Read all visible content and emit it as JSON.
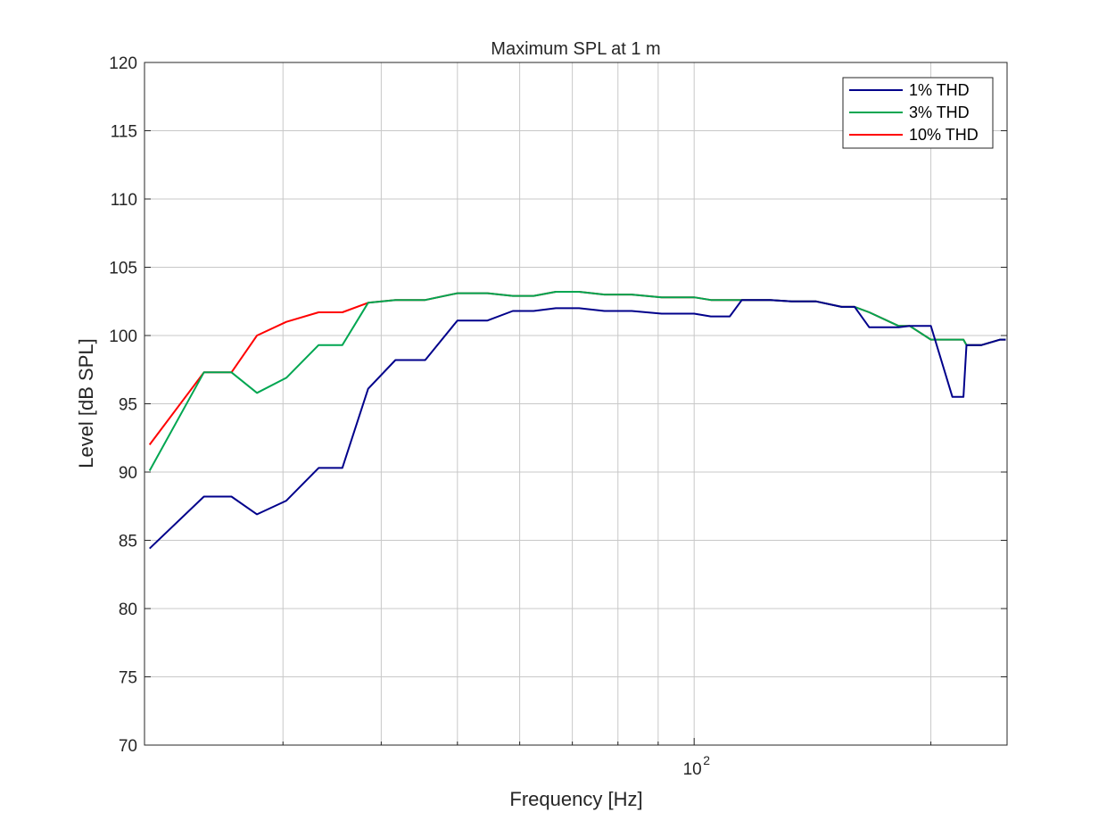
{
  "chart_data": {
    "type": "line",
    "title": "Maximum SPL at 1 m",
    "xlabel": "Frequency [Hz]",
    "ylabel": "Level [dB SPL]",
    "xscale": "log",
    "xlim": [
      20,
      250
    ],
    "ylim": [
      70,
      120
    ],
    "yticks": [
      70,
      75,
      80,
      85,
      90,
      95,
      100,
      105,
      110,
      115,
      120
    ],
    "xtick_major": {
      "value": 100,
      "base": "10",
      "exp": "2"
    },
    "xgrid_minor": [
      30,
      40,
      50,
      60,
      70,
      80,
      90,
      200
    ],
    "grid": true,
    "legend_position": "top-right",
    "series": [
      {
        "name": "1% THD",
        "color": "#00008b",
        "x": [
          20.3,
          23.8,
          25.8,
          27.8,
          30.3,
          33.3,
          35.7,
          38.5,
          41.7,
          45.5,
          50,
          54.6,
          58.8,
          62.5,
          66.7,
          71.4,
          76.9,
          83.3,
          90.9,
          100,
          105,
          111,
          115,
          118,
          125,
          133,
          143,
          154,
          160,
          167,
          182,
          188,
          200,
          213,
          220,
          222,
          227,
          232,
          245,
          249
        ],
        "y": [
          84.4,
          88.2,
          88.2,
          86.9,
          87.9,
          90.3,
          90.3,
          96.1,
          98.2,
          98.2,
          101.1,
          101.1,
          101.8,
          101.8,
          102.0,
          102.0,
          101.8,
          101.8,
          101.6,
          101.6,
          101.4,
          101.4,
          102.6,
          102.6,
          102.6,
          102.5,
          102.5,
          102.1,
          102.1,
          100.6,
          100.6,
          100.7,
          100.7,
          95.5,
          95.5,
          99.3,
          99.3,
          99.3,
          99.7,
          99.7
        ]
      },
      {
        "name": "3% THD",
        "color": "#00a651",
        "x": [
          20.3,
          23.8,
          25.8,
          27.8,
          30.3,
          33.3,
          35.7,
          38.5,
          41.7,
          45.5,
          50,
          54.6,
          58.8,
          62.5,
          66.7,
          71.4,
          76.9,
          83.3,
          90.9,
          100,
          105,
          111,
          115,
          118,
          125,
          133,
          143,
          154,
          160,
          167,
          182,
          188,
          200,
          213,
          220,
          222,
          227,
          232,
          245,
          249
        ],
        "y": [
          90.1,
          97.3,
          97.3,
          95.8,
          96.9,
          99.3,
          99.3,
          102.4,
          102.6,
          102.6,
          103.1,
          103.1,
          102.9,
          102.9,
          103.2,
          103.2,
          103.0,
          103.0,
          102.8,
          102.8,
          102.6,
          102.6,
          102.6,
          102.6,
          102.6,
          102.5,
          102.5,
          102.1,
          102.1,
          101.7,
          100.7,
          100.7,
          99.7,
          99.7,
          99.7,
          99.3,
          99.3,
          99.3,
          99.7,
          99.7
        ]
      },
      {
        "name": "10% THD",
        "color": "#ff0000",
        "x": [
          20.3,
          23.8,
          25.8,
          27.8,
          30.3,
          33.3,
          35.7,
          38.5,
          41.7,
          45.5,
          50,
          54.6,
          58.8,
          62.5,
          66.7,
          71.4,
          76.9,
          83.3,
          90.9,
          100,
          105,
          111,
          115,
          118,
          125,
          133,
          143,
          154,
          160,
          167,
          182,
          188,
          200,
          213,
          220,
          222,
          227,
          232,
          245,
          249
        ],
        "y": [
          92.0,
          97.3,
          97.3,
          100.0,
          101.0,
          101.7,
          101.7,
          102.4,
          102.6,
          102.6,
          103.1,
          103.1,
          102.9,
          102.9,
          103.2,
          103.2,
          103.0,
          103.0,
          102.8,
          102.8,
          102.6,
          102.6,
          102.6,
          102.6,
          102.6,
          102.5,
          102.5,
          102.1,
          102.1,
          101.7,
          100.7,
          100.7,
          99.7,
          99.7,
          99.7,
          99.3,
          99.3,
          99.3,
          99.7,
          99.7
        ]
      }
    ]
  }
}
